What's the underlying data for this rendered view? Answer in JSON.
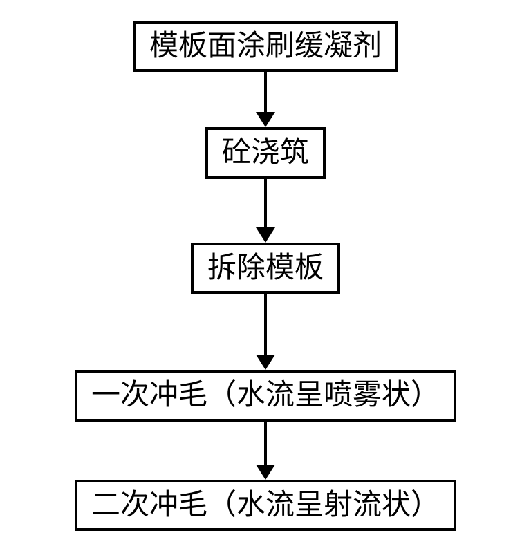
{
  "flowchart": {
    "type": "flowchart",
    "direction": "vertical",
    "background_color": "#ffffff",
    "border_color": "#000000",
    "border_width": 4,
    "text_color": "#000000",
    "font_size": 42,
    "font_family": "SimSun",
    "arrow_line_width": 4,
    "arrow_head_width": 28,
    "arrow_head_height": 22,
    "nodes": [
      {
        "id": "n1",
        "label": "模板面涂刷缓凝剂",
        "arrow_length": 58
      },
      {
        "id": "n2",
        "label": "砼浇筑",
        "arrow_length": 70
      },
      {
        "id": "n3",
        "label": "拆除模板",
        "arrow_length": 88
      },
      {
        "id": "n4",
        "label": "一次冲毛（水流呈喷雾状）",
        "arrow_length": 62
      },
      {
        "id": "n5",
        "label": "二次冲毛（水流呈射流状）",
        "arrow_length": null
      }
    ],
    "edges": [
      {
        "from": "n1",
        "to": "n2"
      },
      {
        "from": "n2",
        "to": "n3"
      },
      {
        "from": "n3",
        "to": "n4"
      },
      {
        "from": "n4",
        "to": "n5"
      }
    ]
  }
}
